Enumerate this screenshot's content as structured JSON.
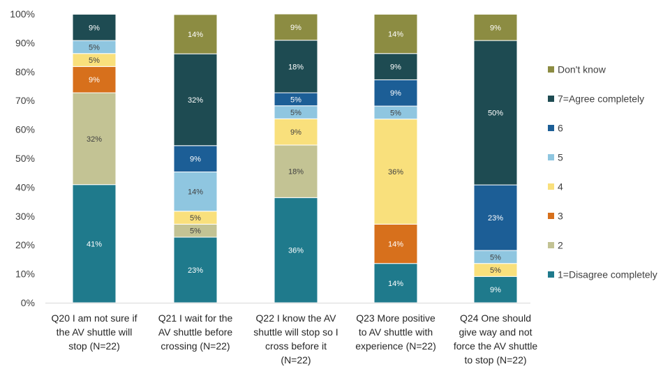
{
  "chart_data": {
    "type": "bar",
    "stacked": true,
    "percent_stacked": true,
    "categories": [
      [
        "Q20 I am not sure if",
        "the AV shuttle will",
        "stop (N=22)"
      ],
      [
        "Q21 I wait for the",
        "AV shuttle before",
        "crossing (N=22)"
      ],
      [
        "Q22 I know the AV",
        "shuttle will stop so I",
        "cross before it",
        "(N=22)"
      ],
      [
        "Q23 More positive",
        "to AV shuttle with",
        "experience (N=22)"
      ],
      [
        "Q24 One should",
        "give way and not",
        "force the AV shuttle",
        "to stop (N=22)"
      ]
    ],
    "ylim": [
      0,
      100
    ],
    "yticks": [
      "0%",
      "10%",
      "20%",
      "30%",
      "40%",
      "50%",
      "60%",
      "70%",
      "80%",
      "90%",
      "100%"
    ],
    "grid": false,
    "legend_position": "right",
    "series": [
      {
        "name": "1=Disagree completely",
        "color": "#1f7a8c",
        "label_color": "#ffffff",
        "values": [
          40.9,
          22.7,
          36.4,
          13.6,
          9.1
        ],
        "labels": [
          "41%",
          "23%",
          "36%",
          "14%",
          "9%"
        ]
      },
      {
        "name": "2",
        "color": "#c3c394",
        "label_color": "#404040",
        "values": [
          31.8,
          4.5,
          18.2,
          0,
          0
        ],
        "labels": [
          "32%",
          "5%",
          "18%",
          "",
          ""
        ]
      },
      {
        "name": "3",
        "color": "#d7701c",
        "label_color": "#ffffff",
        "values": [
          9.1,
          0,
          0,
          13.6,
          0
        ],
        "labels": [
          "9%",
          "",
          "",
          "14%",
          ""
        ]
      },
      {
        "name": "4",
        "color": "#f9e07c",
        "label_color": "#404040",
        "values": [
          4.5,
          4.5,
          9.1,
          36.4,
          4.5
        ],
        "labels": [
          "5%",
          "5%",
          "9%",
          "36%",
          "5%"
        ]
      },
      {
        "name": "5",
        "color": "#8fc6e0",
        "label_color": "#404040",
        "values": [
          4.5,
          13.6,
          4.5,
          4.5,
          4.5
        ],
        "labels": [
          "5%",
          "14%",
          "5%",
          "5%",
          "5%"
        ]
      },
      {
        "name": "6",
        "color": "#1c5e96",
        "label_color": "#ffffff",
        "values": [
          0,
          9.1,
          4.5,
          9.1,
          22.7
        ],
        "labels": [
          "",
          "9%",
          "5%",
          "9%",
          "23%"
        ]
      },
      {
        "name": "7=Agree completely",
        "color": "#1e4b52",
        "label_color": "#ffffff",
        "values": [
          9.1,
          31.8,
          18.2,
          9.1,
          50.0
        ],
        "labels": [
          "9%",
          "32%",
          "18%",
          "9%",
          "50%"
        ]
      },
      {
        "name": "Don't know",
        "color": "#8c8c42",
        "label_color": "#ffffff",
        "values": [
          0,
          13.6,
          9.1,
          13.6,
          9.1
        ],
        "labels": [
          "",
          "14%",
          "9%",
          "14%",
          "9%"
        ]
      }
    ],
    "legend_order": [
      "Don't know",
      "7=Agree completely",
      "6",
      "5",
      "4",
      "3",
      "2",
      "1=Disagree completely"
    ]
  }
}
